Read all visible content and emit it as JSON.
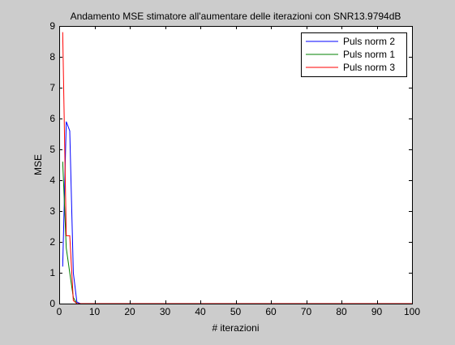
{
  "chart_data": {
    "type": "line",
    "title": "Andamento MSE stimatore all'aumentare delle iterazioni con SNR13.9794dB",
    "xlabel": "# iterazioni",
    "ylabel": "MSE",
    "xlim": [
      0,
      100
    ],
    "ylim": [
      0,
      9
    ],
    "xticks": [
      0,
      10,
      20,
      30,
      40,
      50,
      60,
      70,
      80,
      90,
      100
    ],
    "yticks": [
      0,
      1,
      2,
      3,
      4,
      5,
      6,
      7,
      8,
      9
    ],
    "grid": false,
    "legend_position": "top-right",
    "series": [
      {
        "name": "Puls norm 2",
        "color": "#0000ff",
        "x": [
          1,
          2,
          3,
          4,
          5,
          6,
          100
        ],
        "y": [
          1.2,
          5.9,
          5.6,
          1.0,
          0.05,
          0.0,
          0.0
        ]
      },
      {
        "name": "Puls norm 1",
        "color": "#008000",
        "x": [
          1,
          2,
          3,
          4,
          5,
          6,
          100
        ],
        "y": [
          4.6,
          1.8,
          1.0,
          0.2,
          0.0,
          0.0,
          0.0
        ]
      },
      {
        "name": "Puls norm 3",
        "color": "#ff0000",
        "x": [
          1,
          2,
          3,
          4,
          5,
          6,
          100
        ],
        "y": [
          8.8,
          2.2,
          2.2,
          0.1,
          0.0,
          0.0,
          0.0
        ]
      }
    ]
  }
}
